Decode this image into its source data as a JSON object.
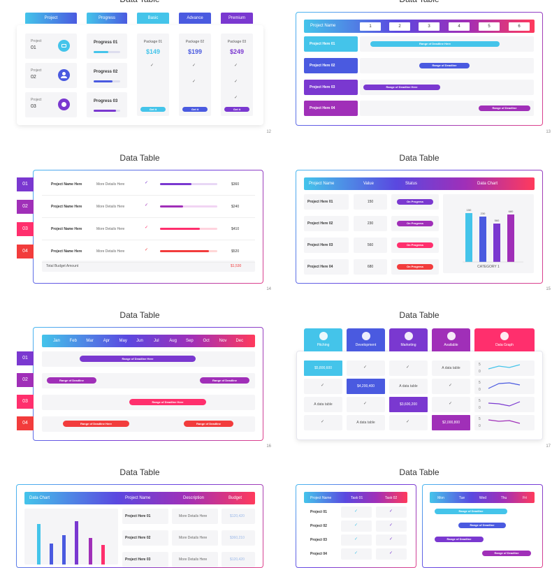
{
  "colors": {
    "cyan": "#44c4ea",
    "blue": "#4a5ae0",
    "purple": "#7a38d0",
    "magenta": "#a02fb8",
    "pink": "#ff2f6d",
    "red": "#f23c3c"
  },
  "slide_title": "Data Table",
  "s12": {
    "tabs": [
      "Project",
      "Progress",
      "Basic",
      "Advance",
      "Premium"
    ],
    "project_label": "Project",
    "project_nums": [
      "01",
      "02",
      "03"
    ],
    "project_icons": [
      "folder-icon",
      "user-icon",
      "apple-icon"
    ],
    "progress": [
      "Progress 01",
      "Progress 02",
      "Progress 03"
    ],
    "progress_values": [
      0.55,
      0.7,
      0.85
    ],
    "packages": [
      {
        "name": "Package 01",
        "price": "$149"
      },
      {
        "name": "Package 02",
        "price": "$199"
      },
      {
        "name": "Package 03",
        "price": "$249"
      }
    ],
    "buy_label": "Get it",
    "page": "12"
  },
  "s13": {
    "header": "Project Name",
    "cols": [
      "1",
      "2",
      "3",
      "4",
      "5",
      "6"
    ],
    "rows": [
      "Project Here 01",
      "Project Here 02",
      "Project Here 03",
      "Project Here 04"
    ],
    "bar_label": "Range of Deadline",
    "bar_label3": "Range of Deadline Here",
    "bar_label1": "Range of Deadline Here",
    "page": "13"
  },
  "s14": {
    "badges": [
      "01",
      "02",
      "03",
      "04"
    ],
    "name": "Project Name Here",
    "details": "More Details Here",
    "amounts": [
      "$360",
      "$240",
      "$410",
      "$520"
    ],
    "bar_values": [
      0.55,
      0.4,
      0.7,
      0.85
    ],
    "total_label": "Total Budget Amount",
    "total": "$1,530",
    "page": "14"
  },
  "s15": {
    "headers": [
      "Project Name",
      "Value",
      "Status",
      "Data Chart"
    ],
    "rows": [
      {
        "name": "Project Here 01",
        "value": "150",
        "status": "On Progress"
      },
      {
        "name": "Project Here 02",
        "value": "230",
        "status": "On Progress"
      },
      {
        "name": "Project Here 03",
        "value": "560",
        "status": "On Progress"
      },
      {
        "name": "Project Here 04",
        "value": "680",
        "status": "On Progress"
      }
    ],
    "category": "CATEGORY 1",
    "page": "15"
  },
  "s16": {
    "months": [
      "Jan",
      "Feb",
      "Mar",
      "Apr",
      "May",
      "Jun",
      "Jul",
      "Aug",
      "Sep",
      "Oct",
      "Nov",
      "Dec"
    ],
    "badges": [
      "01",
      "02",
      "03",
      "04"
    ],
    "label": "Range of Deadline",
    "label_here": "Range of Deadline Here",
    "page": "16"
  },
  "s17": {
    "tabs": [
      "Pitching",
      "Development",
      "Marketing",
      "Available",
      "Data Graph"
    ],
    "tab_icons": [
      "rocket-icon",
      "code-icon",
      "cart-icon",
      "gear-icon",
      "chart-icon"
    ],
    "amounts": [
      "$5,800,600",
      "$4,200,400",
      "$3,600,200",
      "$2,000,800"
    ],
    "adt": "A data table",
    "axis_top": "5",
    "axis_bottom": "0",
    "page": "17"
  },
  "s18": {
    "headers": [
      "Data Chart",
      "Project Name",
      "Description",
      "Budget"
    ],
    "rows": [
      {
        "name": "Project Here 01",
        "desc": "More Details Here",
        "budget": "$120,420"
      },
      {
        "name": "Project Here 02",
        "desc": "More Details Here",
        "budget": "$360,210"
      },
      {
        "name": "Project Here 03",
        "desc": "More Details Here",
        "budget": "$120,420"
      }
    ]
  },
  "s19": {
    "headers": [
      "Project Name",
      "Task 01",
      "Task 02"
    ],
    "rows": [
      "Project 01",
      "Project 02",
      "Project 03",
      "Project 04"
    ],
    "days": [
      "Mon",
      "Tue",
      "Wed",
      "Thu",
      "Fri"
    ],
    "label": "Range of Deadline"
  }
}
